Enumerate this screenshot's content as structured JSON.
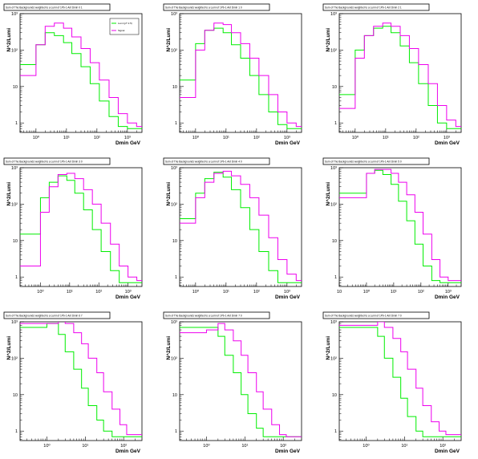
{
  "colors": {
    "series1": "#00ee00",
    "series2": "#ee00ee",
    "axis": "#000000"
  },
  "chart_data": [
    {
      "type": "line",
      "step": true,
      "log_x": true,
      "log_y": true,
      "title": "Sum of The Backgrounds weighted to a Lumi of 1Pb-1 Ant Dmin 0 1",
      "xlabel": "Dmin GeV",
      "ylabel": "N^2/Lumi",
      "xlim": [
        0.3,
        3000
      ],
      "ylim": [
        0.55,
        1000
      ],
      "legend": {
        "position": "top-right",
        "entries": [
          "Lumi (pT 2.5)",
          "Signal"
        ]
      },
      "x": [
        0.3,
        1,
        2,
        4,
        8,
        15,
        30,
        60,
        120,
        250,
        500,
        1000,
        2000
      ],
      "series": [
        {
          "color": "#00ee00",
          "values": [
            40,
            140,
            300,
            250,
            160,
            80,
            35,
            12,
            4,
            1.5,
            0.8,
            0.7,
            0.7
          ]
        },
        {
          "color": "#ee00ee",
          "values": [
            20,
            140,
            450,
            550,
            400,
            230,
            110,
            45,
            15,
            5,
            1.8,
            1,
            0.8
          ]
        }
      ]
    },
    {
      "type": "line",
      "step": true,
      "log_x": true,
      "log_y": true,
      "title": "Sum of The Backgrounds weighted to a Lumi of 1Pb-1 Ant Dmin 1 0",
      "xlabel": "Dmin GeV",
      "ylabel": "N^2/Lumi",
      "xlim": [
        0.3,
        3000
      ],
      "ylim": [
        0.55,
        1000
      ],
      "legend": null,
      "x": [
        0.3,
        1,
        2,
        4,
        8,
        15,
        30,
        60,
        120,
        250,
        500,
        1000,
        2000
      ],
      "series": [
        {
          "color": "#00ee00",
          "values": [
            15,
            150,
            350,
            400,
            300,
            140,
            60,
            20,
            6,
            2,
            0.9,
            0.7,
            0.7
          ]
        },
        {
          "color": "#ee00ee",
          "values": [
            5,
            100,
            350,
            550,
            500,
            300,
            150,
            60,
            20,
            6,
            2,
            1,
            0.8
          ]
        }
      ]
    },
    {
      "type": "line",
      "step": true,
      "log_x": true,
      "log_y": true,
      "title": "Sum of The Backgrounds weighted to a Lumi of 1Pb-1 Ant Dmin 2 1",
      "xlabel": "Dmin GeV",
      "ylabel": "N^2/Lumi",
      "xlim": [
        0.3,
        3000
      ],
      "ylim": [
        0.55,
        1000
      ],
      "legend": null,
      "x": [
        0.3,
        1,
        2,
        4,
        8,
        15,
        30,
        60,
        120,
        250,
        500,
        1000,
        2000
      ],
      "series": [
        {
          "color": "#00ee00",
          "values": [
            6,
            100,
            250,
            400,
            450,
            300,
            130,
            45,
            12,
            3,
            1,
            0.7,
            0.7
          ]
        },
        {
          "color": "#ee00ee",
          "values": [
            2.5,
            60,
            250,
            450,
            550,
            450,
            250,
            110,
            40,
            12,
            3,
            1.2,
            0.8
          ]
        }
      ]
    },
    {
      "type": "line",
      "step": true,
      "log_x": true,
      "log_y": true,
      "title": "Sum of The Backgrounds weighted to a Lumi of 1Pb-1 Ant Dmin 3 0",
      "xlabel": "Dmin GeV",
      "ylabel": "N^2/Lumi",
      "xlim": [
        0.2,
        3000
      ],
      "ylim": [
        0.55,
        1000
      ],
      "legend": null,
      "x": [
        0.2,
        1,
        2,
        4,
        8,
        15,
        30,
        60,
        120,
        250,
        500,
        1000,
        2000
      ],
      "series": [
        {
          "color": "#00ee00",
          "values": [
            15,
            150,
            400,
            600,
            450,
            200,
            70,
            20,
            5,
            1.5,
            0.7,
            0.7,
            0.7
          ]
        },
        {
          "color": "#ee00ee",
          "values": [
            2,
            60,
            300,
            650,
            700,
            500,
            250,
            100,
            30,
            8,
            2,
            1,
            0.8
          ]
        }
      ]
    },
    {
      "type": "line",
      "step": true,
      "log_x": true,
      "log_y": true,
      "title": "Sum of The Backgrounds weighted to a Lumi of 1Pb-1 Ant Dmin 4 0",
      "xlabel": "Dmin GeV",
      "ylabel": "N^2/Lumi",
      "xlim": [
        0.3,
        3000
      ],
      "ylim": [
        0.55,
        1000
      ],
      "legend": null,
      "x": [
        0.3,
        1,
        2,
        4,
        8,
        15,
        30,
        60,
        120,
        250,
        500,
        1000,
        2000
      ],
      "series": [
        {
          "color": "#00ee00",
          "values": [
            40,
            200,
            500,
            750,
            550,
            250,
            80,
            20,
            5,
            1.5,
            0.7,
            0.7,
            0.7
          ]
        },
        {
          "color": "#ee00ee",
          "values": [
            30,
            150,
            400,
            700,
            800,
            600,
            350,
            150,
            50,
            12,
            3,
            1.2,
            0.8
          ]
        }
      ]
    },
    {
      "type": "line",
      "step": true,
      "log_x": true,
      "log_y": true,
      "title": "Sum of The Backgrounds weighted to a Lumi of 1Pb-1 Ant Dmin 5 0",
      "xlabel": "Dmin GeV",
      "ylabel": "N^2/Lumi",
      "xlim": [
        0.1,
        3000
      ],
      "ylim": [
        0.55,
        1000
      ],
      "legend": null,
      "x": [
        0.1,
        1,
        2,
        4,
        8,
        15,
        30,
        60,
        120,
        250,
        500,
        1000
      ],
      "series": [
        {
          "color": "#00ee00",
          "values": [
            200,
            700,
            850,
            650,
            350,
            120,
            35,
            8,
            2,
            0.8,
            0.7,
            0.7
          ]
        },
        {
          "color": "#ee00ee",
          "values": [
            150,
            700,
            900,
            900,
            700,
            400,
            180,
            60,
            15,
            3,
            1,
            0.8
          ]
        }
      ]
    },
    {
      "type": "line",
      "step": true,
      "log_x": true,
      "log_y": true,
      "title": "Sum of The Backgrounds weighted to a Lumi of 1Pb-1 Ant Dmin 6 7",
      "xlabel": "Dmin GeV",
      "ylabel": "N^2/Lumi",
      "xlim": [
        0.2,
        300
      ],
      "ylim": [
        0.55,
        1000
      ],
      "legend": null,
      "x": [
        0.2,
        1,
        2,
        3,
        5,
        8,
        12,
        20,
        30,
        50,
        80,
        120
      ],
      "series": [
        {
          "color": "#00ee00",
          "values": [
            700,
            900,
            450,
            150,
            50,
            15,
            5,
            2,
            1,
            0.7,
            0.7,
            0.7
          ]
        },
        {
          "color": "#ee00ee",
          "values": [
            900,
            900,
            1400,
            900,
            500,
            250,
            100,
            40,
            12,
            4,
            1.5,
            0.8
          ]
        }
      ]
    },
    {
      "type": "line",
      "step": true,
      "log_x": true,
      "log_y": true,
      "title": "Sum of The Backgrounds weighted to a Lumi of 1Pb-1 Ant Dmin 7 0",
      "xlabel": "Dmin GeV",
      "ylabel": "N^2/Lumi",
      "xlim": [
        0.2,
        300
      ],
      "ylim": [
        0.55,
        1000
      ],
      "legend": null,
      "x": [
        0.2,
        1,
        2,
        3,
        5,
        8,
        12,
        20,
        30,
        50,
        80,
        120
      ],
      "series": [
        {
          "color": "#00ee00",
          "values": [
            700,
            700,
            400,
            120,
            40,
            10,
            3,
            1.2,
            0.7,
            0.7,
            0.7,
            0.7
          ]
        },
        {
          "color": "#ee00ee",
          "values": [
            500,
            600,
            900,
            600,
            300,
            120,
            40,
            12,
            4,
            1.5,
            0.8,
            0.7
          ]
        }
      ]
    },
    {
      "type": "line",
      "step": true,
      "log_x": true,
      "log_y": true,
      "title": "Sum of The Backgrounds weighted to a Lumi of 1Pb-1 Ant Dmin 7 0",
      "xlabel": "Dmin GeV",
      "ylabel": "N^2/Lumi",
      "xlim": [
        0.2,
        300
      ],
      "ylim": [
        0.55,
        1000
      ],
      "legend": null,
      "x": [
        0.2,
        1,
        2,
        3,
        5,
        8,
        12,
        20,
        30,
        50,
        80,
        120
      ],
      "series": [
        {
          "color": "#00ee00",
          "values": [
            700,
            700,
            400,
            100,
            30,
            8,
            2.5,
            1,
            0.7,
            0.7,
            0.7,
            0.7
          ]
        },
        {
          "color": "#ee00ee",
          "values": [
            800,
            800,
            1000,
            700,
            350,
            150,
            50,
            15,
            5,
            1.8,
            1,
            0.8
          ]
        }
      ]
    }
  ]
}
